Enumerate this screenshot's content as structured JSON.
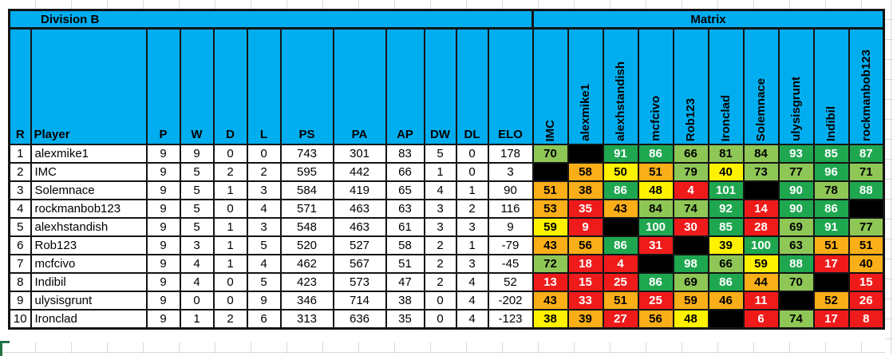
{
  "left_table": {
    "title": "Division B",
    "columns": [
      "R",
      "Player",
      "P",
      "W",
      "D",
      "L",
      "PS",
      "PA",
      "AP",
      "DW",
      "DL",
      "ELO"
    ],
    "rows": [
      {
        "cells": [
          "1",
          "alexmike1",
          "9",
          "9",
          "0",
          "0",
          "743",
          "301",
          "83",
          "5",
          "0",
          "178"
        ]
      },
      {
        "cells": [
          "2",
          "IMC",
          "9",
          "5",
          "2",
          "2",
          "595",
          "442",
          "66",
          "1",
          "0",
          "3"
        ]
      },
      {
        "cells": [
          "3",
          "Solemnace",
          "9",
          "5",
          "1",
          "3",
          "584",
          "419",
          "65",
          "4",
          "1",
          "90"
        ]
      },
      {
        "cells": [
          "4",
          "rockmanbob123",
          "9",
          "5",
          "0",
          "4",
          "571",
          "463",
          "63",
          "3",
          "2",
          "116"
        ]
      },
      {
        "cells": [
          "5",
          "alexhstandish",
          "9",
          "5",
          "1",
          "3",
          "548",
          "463",
          "61",
          "3",
          "3",
          "9"
        ]
      },
      {
        "cells": [
          "6",
          "Rob123",
          "9",
          "3",
          "1",
          "5",
          "520",
          "527",
          "58",
          "2",
          "1",
          "-79"
        ]
      },
      {
        "cells": [
          "7",
          "mcfcivo",
          "9",
          "4",
          "1",
          "4",
          "462",
          "567",
          "51",
          "2",
          "3",
          "-45"
        ]
      },
      {
        "cells": [
          "8",
          "Indibil",
          "9",
          "4",
          "0",
          "5",
          "423",
          "573",
          "47",
          "2",
          "4",
          "52"
        ]
      },
      {
        "cells": [
          "9",
          "ulysisgrunt",
          "9",
          "0",
          "0",
          "9",
          "346",
          "714",
          "38",
          "0",
          "4",
          "-202"
        ]
      },
      {
        "cells": [
          "10",
          "Ironclad",
          "9",
          "1",
          "2",
          "6",
          "313",
          "636",
          "35",
          "0",
          "4",
          "-123"
        ]
      }
    ]
  },
  "matrix": {
    "title": "Matrix",
    "columns": [
      "IMC",
      "alexmike1",
      "alexhstandish",
      "mcfcivo",
      "Rob123",
      "Ironclad",
      "Solemnace",
      "ulysisgrunt",
      "Indibil",
      "rockmanbob123"
    ],
    "rows": [
      {
        "player": "alexmike1",
        "cells": [
          {
            "v": 70,
            "k": "win"
          },
          {
            "k": "self"
          },
          {
            "v": 91,
            "k": "win_strong"
          },
          {
            "v": 86,
            "k": "win_strong"
          },
          {
            "v": 66,
            "k": "win"
          },
          {
            "v": 81,
            "k": "win"
          },
          {
            "v": 84,
            "k": "win"
          },
          {
            "v": 93,
            "k": "win_strong"
          },
          {
            "v": 85,
            "k": "win_strong"
          },
          {
            "v": 87,
            "k": "win_strong"
          }
        ]
      },
      {
        "player": "IMC",
        "cells": [
          {
            "k": "self"
          },
          {
            "v": 58,
            "k": "loss"
          },
          {
            "v": 50,
            "k": "draw"
          },
          {
            "v": 51,
            "k": "loss"
          },
          {
            "v": 79,
            "k": "win"
          },
          {
            "v": 40,
            "k": "draw"
          },
          {
            "v": 73,
            "k": "win"
          },
          {
            "v": 77,
            "k": "win"
          },
          {
            "v": 96,
            "k": "win_strong"
          },
          {
            "v": 71,
            "k": "win"
          }
        ]
      },
      {
        "player": "Solemnace",
        "cells": [
          {
            "v": 51,
            "k": "loss"
          },
          {
            "v": 38,
            "k": "loss"
          },
          {
            "v": 86,
            "k": "win_strong"
          },
          {
            "v": 48,
            "k": "draw"
          },
          {
            "v": 4,
            "k": "loss_strong"
          },
          {
            "v": 101,
            "k": "win_strong"
          },
          {
            "k": "self"
          },
          {
            "v": 90,
            "k": "win_strong"
          },
          {
            "v": 78,
            "k": "win"
          },
          {
            "v": 88,
            "k": "win_strong"
          }
        ]
      },
      {
        "player": "rockmanbob123",
        "cells": [
          {
            "v": 53,
            "k": "loss"
          },
          {
            "v": 35,
            "k": "loss_strong"
          },
          {
            "v": 43,
            "k": "loss"
          },
          {
            "v": 84,
            "k": "win"
          },
          {
            "v": 74,
            "k": "win"
          },
          {
            "v": 92,
            "k": "win_strong"
          },
          {
            "v": 14,
            "k": "loss_strong"
          },
          {
            "v": 90,
            "k": "win_strong"
          },
          {
            "v": 86,
            "k": "win_strong"
          },
          {
            "k": "self"
          }
        ]
      },
      {
        "player": "alexhstandish",
        "cells": [
          {
            "v": 59,
            "k": "draw"
          },
          {
            "v": 9,
            "k": "loss_strong"
          },
          {
            "k": "self"
          },
          {
            "v": 100,
            "k": "win_strong"
          },
          {
            "v": 30,
            "k": "loss_strong"
          },
          {
            "v": 85,
            "k": "win_strong"
          },
          {
            "v": 28,
            "k": "loss_strong"
          },
          {
            "v": 69,
            "k": "win"
          },
          {
            "v": 91,
            "k": "win_strong"
          },
          {
            "v": 77,
            "k": "win"
          }
        ]
      },
      {
        "player": "Rob123",
        "cells": [
          {
            "v": 43,
            "k": "loss"
          },
          {
            "v": 56,
            "k": "loss"
          },
          {
            "v": 86,
            "k": "win_strong"
          },
          {
            "v": 31,
            "k": "loss_strong"
          },
          {
            "k": "self"
          },
          {
            "v": 39,
            "k": "draw"
          },
          {
            "v": 100,
            "k": "win_strong"
          },
          {
            "v": 63,
            "k": "win"
          },
          {
            "v": 51,
            "k": "loss"
          },
          {
            "v": 51,
            "k": "loss"
          }
        ]
      },
      {
        "player": "mcfcivo",
        "cells": [
          {
            "v": 72,
            "k": "win"
          },
          {
            "v": 18,
            "k": "loss_strong"
          },
          {
            "v": 4,
            "k": "loss_strong"
          },
          {
            "k": "self"
          },
          {
            "v": 98,
            "k": "win_strong"
          },
          {
            "v": 66,
            "k": "win"
          },
          {
            "v": 59,
            "k": "draw"
          },
          {
            "v": 88,
            "k": "win_strong"
          },
          {
            "v": 17,
            "k": "loss_strong"
          },
          {
            "v": 40,
            "k": "loss"
          }
        ]
      },
      {
        "player": "Indibil",
        "cells": [
          {
            "v": 13,
            "k": "loss_strong"
          },
          {
            "v": 15,
            "k": "loss_strong"
          },
          {
            "v": 25,
            "k": "loss_strong"
          },
          {
            "v": 86,
            "k": "win_strong"
          },
          {
            "v": 69,
            "k": "win"
          },
          {
            "v": 86,
            "k": "win_strong"
          },
          {
            "v": 44,
            "k": "loss"
          },
          {
            "v": 70,
            "k": "win"
          },
          {
            "k": "self"
          },
          {
            "v": 15,
            "k": "loss_strong"
          }
        ]
      },
      {
        "player": "ulysisgrunt",
        "cells": [
          {
            "v": 43,
            "k": "loss"
          },
          {
            "v": 33,
            "k": "loss_strong"
          },
          {
            "v": 51,
            "k": "loss"
          },
          {
            "v": 25,
            "k": "loss_strong"
          },
          {
            "v": 59,
            "k": "loss"
          },
          {
            "v": 46,
            "k": "loss"
          },
          {
            "v": 11,
            "k": "loss_strong"
          },
          {
            "k": "self"
          },
          {
            "v": 52,
            "k": "loss"
          },
          {
            "v": 26,
            "k": "loss_strong"
          }
        ]
      },
      {
        "player": "Ironclad",
        "cells": [
          {
            "v": 38,
            "k": "draw"
          },
          {
            "v": 39,
            "k": "loss"
          },
          {
            "v": 27,
            "k": "loss_strong"
          },
          {
            "v": 56,
            "k": "loss"
          },
          {
            "v": 48,
            "k": "draw"
          },
          {
            "k": "self"
          },
          {
            "v": 6,
            "k": "loss_strong"
          },
          {
            "v": 74,
            "k": "win"
          },
          {
            "v": 17,
            "k": "loss_strong"
          },
          {
            "v": 8,
            "k": "loss_strong"
          }
        ]
      }
    ]
  },
  "colors": {
    "header_blue": "#00aeef",
    "win_strong": "#1fa750",
    "win": "#8fc757",
    "draw": "#fff200",
    "loss": "#faae17",
    "loss_strong": "#ef1b1b",
    "self": "#000000",
    "gridline_gray": "#d9d9d9",
    "selection_green": "#217346"
  }
}
